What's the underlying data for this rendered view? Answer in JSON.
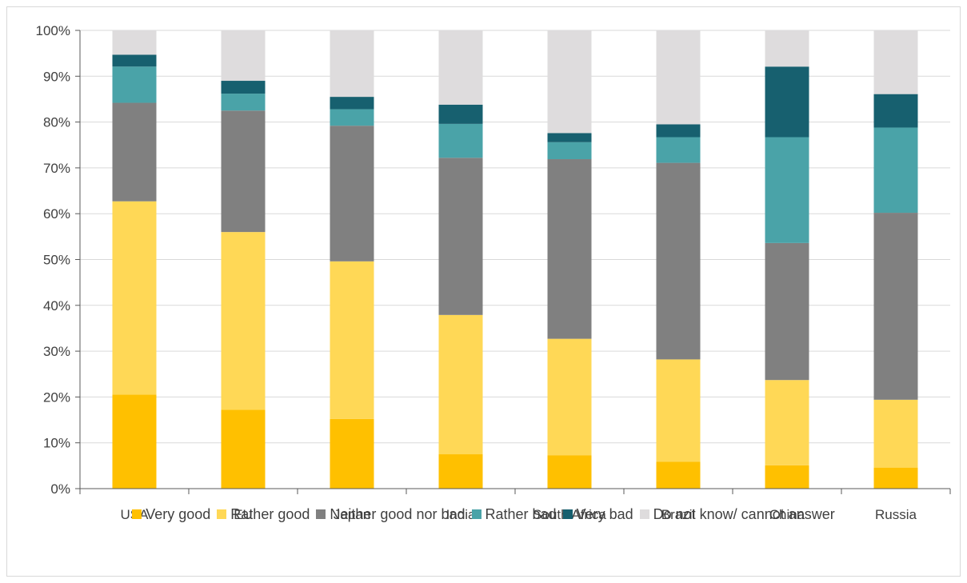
{
  "chart_data": {
    "type": "bar",
    "stacked": true,
    "categories": [
      "USA",
      "EU",
      "Japan",
      "India",
      "South Africa",
      "Brazil",
      "China",
      "Russia"
    ],
    "ylim": [
      0,
      100
    ],
    "yticks": [
      "0%",
      "10%",
      "20%",
      "30%",
      "40%",
      "50%",
      "60%",
      "70%",
      "80%",
      "90%",
      "100%"
    ],
    "grid": true,
    "legend_position": "bottom",
    "series": [
      {
        "name": "Very good",
        "color": "#FFC000",
        "values": [
          20.5,
          17.2,
          15.2,
          7.5,
          7.3,
          5.9,
          5.1,
          4.6
        ]
      },
      {
        "name": "Rather good",
        "color": "#FFD856",
        "values": [
          42.2,
          38.8,
          34.4,
          30.4,
          25.4,
          22.3,
          18.6,
          14.8
        ]
      },
      {
        "name": "Neither good nor bad",
        "color": "#808080",
        "values": [
          21.5,
          26.5,
          29.6,
          34.3,
          39.2,
          42.9,
          29.9,
          40.8
        ]
      },
      {
        "name": "Rather bad",
        "color": "#4AA3A8",
        "values": [
          7.9,
          3.7,
          3.6,
          7.4,
          3.7,
          5.6,
          23.1,
          18.6
        ]
      },
      {
        "name": "Very bad",
        "color": "#17606F",
        "values": [
          2.6,
          2.8,
          2.7,
          4.2,
          2.0,
          2.8,
          15.4,
          7.3
        ]
      },
      {
        "name": "Do not know/ cannot answer",
        "color": "#DEDCDD",
        "values": [
          5.3,
          11.0,
          14.5,
          16.2,
          22.4,
          20.5,
          7.9,
          13.9
        ]
      }
    ]
  }
}
